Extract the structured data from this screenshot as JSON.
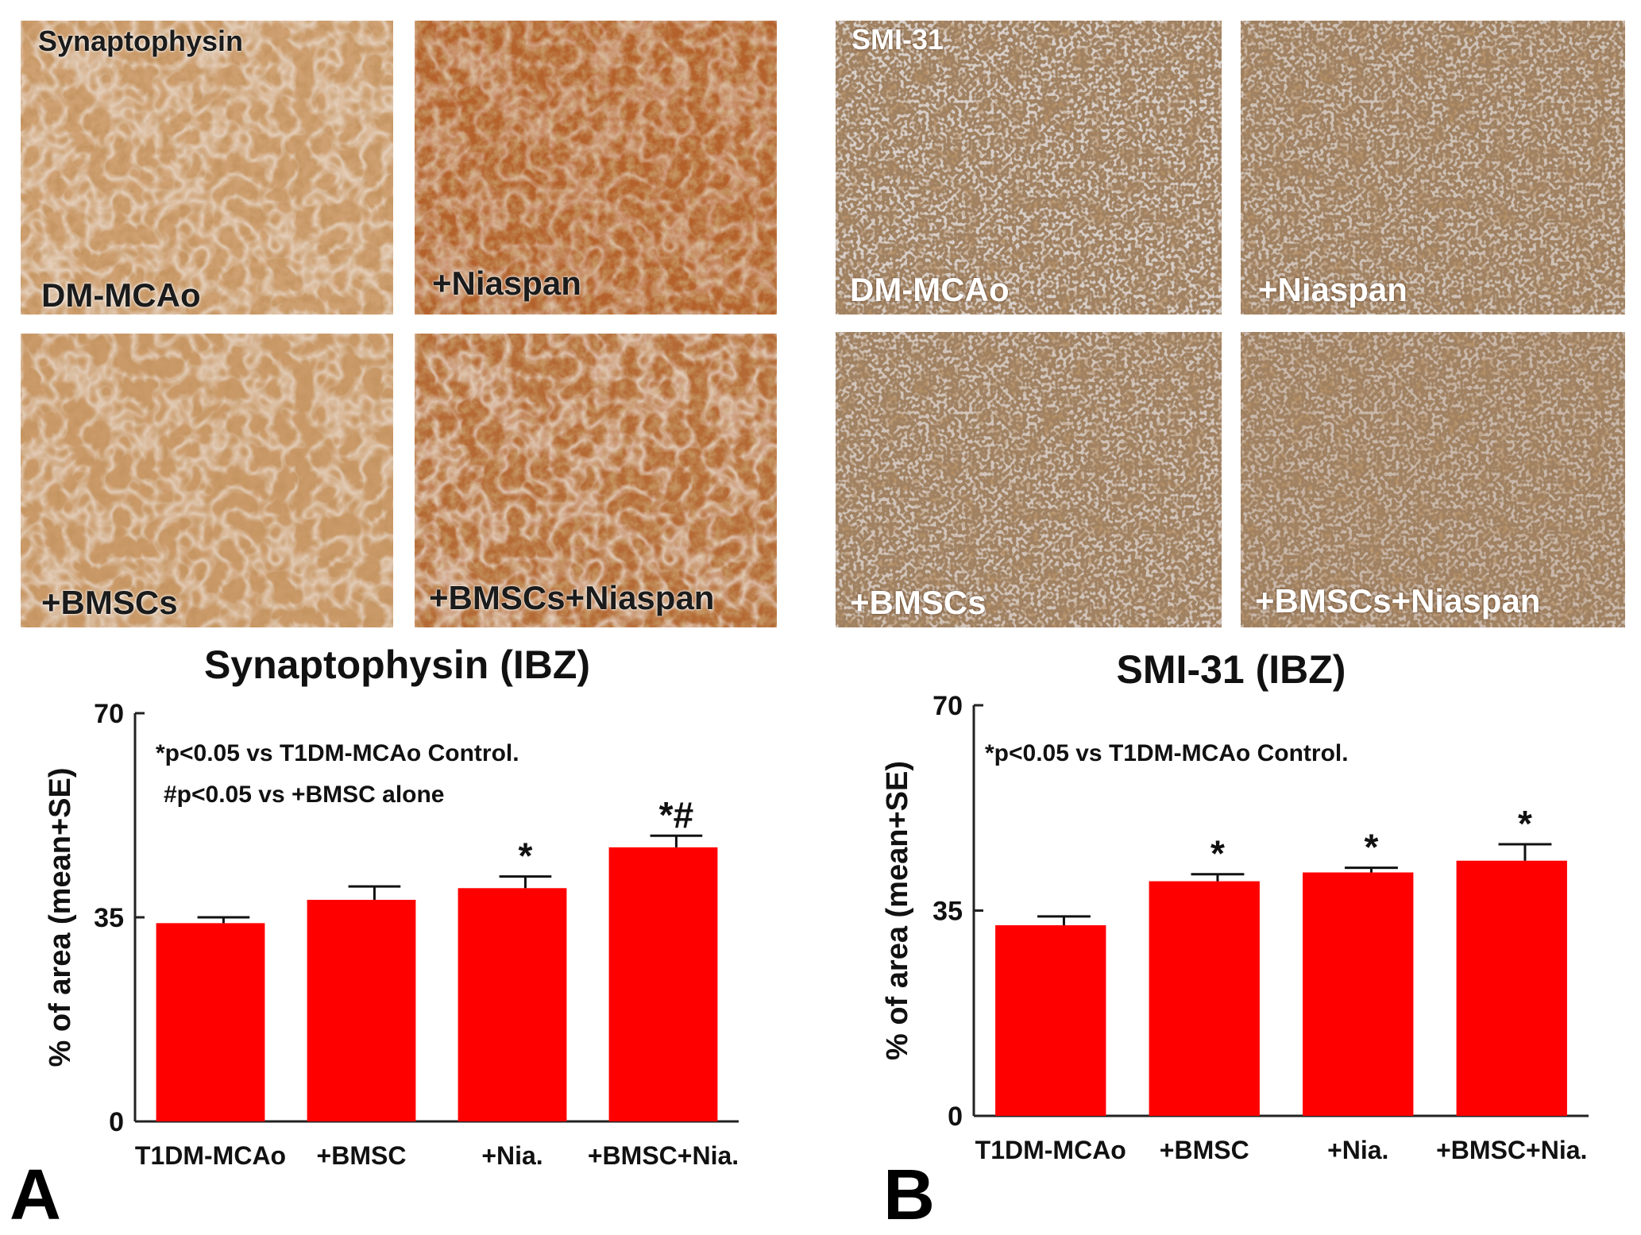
{
  "panelA": {
    "stain_label": "Synaptophysin",
    "micrographs": [
      "DM-MCAo",
      "+Niaspan",
      "+BMSCs",
      "+BMSCs+Niaspan"
    ],
    "letter": "A"
  },
  "panelB": {
    "stain_label": "SMI-31",
    "micrographs": [
      "DM-MCAo",
      "+Niaspan",
      "+BMSCs",
      "+BMSCs+Niaspan"
    ],
    "letter": "B"
  },
  "chart_data": [
    {
      "type": "bar",
      "title": "Synaptophysin (IBZ)",
      "ylabel": "% of area (mean+SE)",
      "xlabel": "",
      "categories": [
        "T1DM-MCAo",
        "+BMSC",
        "+Nia.",
        "+BMSC+Nia."
      ],
      "values": [
        34,
        38,
        40,
        47
      ],
      "errors": [
        1,
        2.3,
        2,
        2
      ],
      "significance": [
        "",
        "",
        "*",
        "*#"
      ],
      "ylim": [
        0,
        70
      ],
      "yticks": [
        "0",
        "35",
        "70"
      ],
      "annotations": [
        "*p<0.05 vs T1DM-MCAo Control.",
        "#p<0.05 vs +BMSC alone"
      ],
      "bar_color": "#ff0000",
      "grid": false,
      "legend": "none"
    },
    {
      "type": "bar",
      "title": "SMI-31 (IBZ)",
      "ylabel": "% of area (mean+SE)",
      "xlabel": "",
      "categories": [
        "T1DM-MCAo",
        "+BMSC",
        "+Nia.",
        "+BMSC+Nia."
      ],
      "values": [
        32.5,
        40,
        41.5,
        43.5
      ],
      "errors": [
        1.5,
        1.2,
        0.8,
        2.8
      ],
      "significance": [
        "",
        "*",
        "*",
        "*"
      ],
      "ylim": [
        0,
        70
      ],
      "yticks": [
        "0",
        "35",
        "70"
      ],
      "annotations": [
        "*p<0.05 vs T1DM-MCAo Control."
      ],
      "bar_color": "#ff0000",
      "grid": false,
      "legend": "none"
    }
  ]
}
